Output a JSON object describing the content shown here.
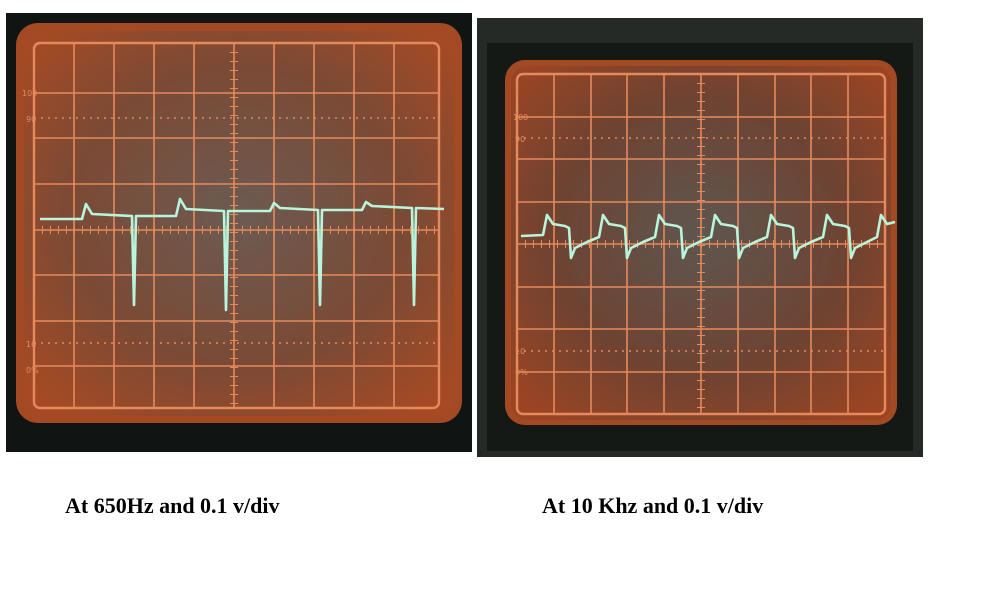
{
  "captions": {
    "left": "At 650Hz and 0.1 v/div",
    "right": "At 10 Khz and 0.1 v/div"
  },
  "scope_labels": {
    "pct_100": "100",
    "pct_90": "90",
    "pct_10": "10",
    "pct_0": "0%"
  },
  "colors": {
    "screen_border": "#c65c2e",
    "grid_line": "#e07e52",
    "screen_glow": "#8a3a1e",
    "screen_center": "#6e5a50",
    "bezel": "#0f1412",
    "trace": "#b9f5dc",
    "caption_text": "#000000"
  },
  "icons": {
    "left_photo": "oscilloscope-screen",
    "right_photo": "oscilloscope-screen"
  }
}
